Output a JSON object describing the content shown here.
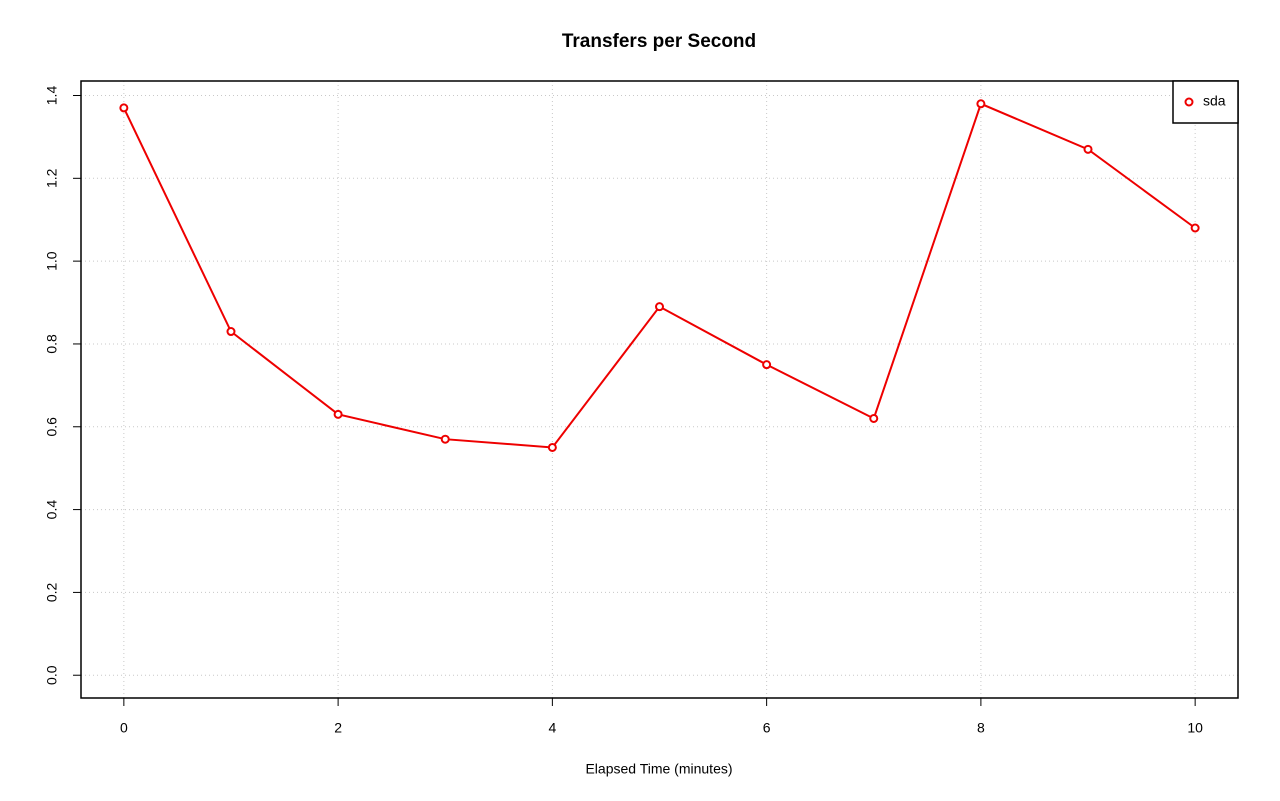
{
  "chart_data": {
    "type": "line",
    "title": "Transfers per Second",
    "x_label": "Elapsed Time (minutes)",
    "x": [
      0,
      1,
      2,
      3,
      4,
      5,
      6,
      7,
      8,
      9,
      10
    ],
    "series": [
      {
        "name": "sda",
        "color": "#ee0000",
        "values": [
          1.37,
          0.83,
          0.63,
          0.57,
          0.55,
          0.89,
          0.75,
          0.62,
          1.38,
          1.27,
          1.08
        ]
      }
    ],
    "xlim": [
      -0.4,
      10.4
    ],
    "xticks": [
      0,
      2,
      4,
      6,
      8,
      10
    ],
    "ylim": [
      -0.055,
      1.435
    ],
    "yticks": [
      {
        "value": 0,
        "label": "0.0"
      },
      0.2,
      0.4,
      0.6,
      0.8,
      {
        "value": 1,
        "label": "1.0"
      },
      1.2,
      1.4
    ],
    "grid": true,
    "legend": "top-right"
  }
}
